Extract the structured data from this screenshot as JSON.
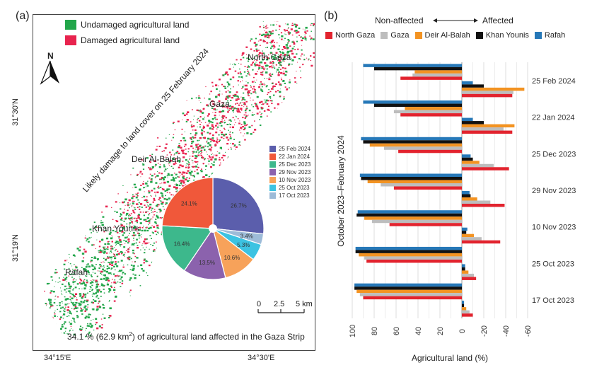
{
  "panel_a": {
    "label": "(a)",
    "legend": [
      {
        "label": "Undamaged agricultural land",
        "color": "#22a64a"
      },
      {
        "label": "Damaged agricultural land",
        "color": "#e8234e"
      }
    ],
    "north_label": "N",
    "map_labels": [
      "North Gaza",
      "Gaza",
      "Deir Al-Balah",
      "Khan Younis",
      "Rafah"
    ],
    "diagonal_caption": "Likely damage to land cover on 25 February 2024",
    "lat_labels": [
      "31°30'N",
      "31°19'N"
    ],
    "lon_labels": [
      "34°15'E",
      "34°30'E"
    ],
    "scale_labels": [
      "0",
      "2.5",
      "5 km"
    ],
    "summary_prefix": "34.1 % (62.9 km",
    "summary_sup": "2",
    "summary_suffix": ") of agricultural land affected in the Gaza Strip"
  },
  "panel_b": {
    "label": "(b)",
    "direction_left": "Non-affected",
    "direction_right": "Affected"
  },
  "chart_data": [
    {
      "type": "pie",
      "title": "",
      "slices": [
        {
          "label": "25 Feb 2024",
          "value": 26.7,
          "pct_label": "26.7%",
          "color": "#5b5eac"
        },
        {
          "label": "17 Oct 2023",
          "value": 3.4,
          "pct_label": "3.4%",
          "color": "#9dbbd8"
        },
        {
          "label": "25 Oct 2023",
          "value": 5.3,
          "pct_label": "5.3%",
          "color": "#3cc3e2"
        },
        {
          "label": "10 Nov 2023",
          "value": 10.6,
          "pct_label": "10.6%",
          "color": "#f7a25a"
        },
        {
          "label": "29 Nov 2023",
          "value": 13.5,
          "pct_label": "13.5%",
          "color": "#8b62ad"
        },
        {
          "label": "25 Dec 2023",
          "value": 16.4,
          "pct_label": "16.4%",
          "color": "#3db88c"
        },
        {
          "label": "22 Jan 2024",
          "value": 24.1,
          "pct_label": "24.1%",
          "color": "#f0583a"
        }
      ],
      "legend_order": [
        "25 Feb 2024",
        "22 Jan 2024",
        "25 Dec 2023",
        "29 Nov 2023",
        "10 Nov 2023",
        "25 Oct 2023",
        "17 Oct 2023"
      ]
    },
    {
      "type": "bar",
      "orientation": "horizontal-diverging",
      "title": "",
      "xlabel": "Agricultural land (%)",
      "ylabel": "October 2023–February 2024",
      "xlim": [
        100,
        -60
      ],
      "xticks": [
        100,
        80,
        60,
        40,
        20,
        0,
        -20,
        -40,
        -60
      ],
      "xtick_labels": [
        "100",
        "80",
        "60",
        "40",
        "20",
        "0",
        "-20",
        "-40",
        "-60"
      ],
      "categories": [
        "25 Feb 2024",
        "22 Jan 2024",
        "25 Dec 2023",
        "29 Nov 2023",
        "10 Nov 2023",
        "25 Oct 2023",
        "17 Oct 2023"
      ],
      "series": [
        {
          "name": "North Gaza",
          "color": "#e2232e",
          "non_affected": [
            56,
            56,
            58,
            62,
            66,
            87,
            90
          ],
          "affected": [
            -46,
            -46,
            -43,
            -39,
            -35,
            -13,
            -10
          ]
        },
        {
          "name": "Gaza",
          "color": "#bdbdbd",
          "non_affected": [
            45,
            62,
            71,
            74,
            82,
            89,
            93
          ],
          "affected": [
            -47,
            -38,
            -29,
            -26,
            -18,
            -11,
            -7
          ]
        },
        {
          "name": "Deir Al-Balah",
          "color": "#f39322",
          "non_affected": [
            43,
            52,
            84,
            86,
            89,
            94,
            96
          ],
          "affected": [
            -57,
            -48,
            -16,
            -14,
            -11,
            -6,
            -4
          ]
        },
        {
          "name": "Khan Younis",
          "color": "#111111",
          "non_affected": [
            80,
            80,
            90,
            92,
            96,
            97,
            98
          ],
          "affected": [
            -20,
            -20,
            -10,
            -8,
            -4,
            -3,
            -2
          ]
        },
        {
          "name": "Rafah",
          "color": "#2678b8",
          "non_affected": [
            90,
            90,
            92,
            93,
            95,
            97,
            98
          ],
          "affected": [
            -10,
            -10,
            -8,
            -7,
            -5,
            -3,
            -2
          ]
        }
      ]
    }
  ]
}
